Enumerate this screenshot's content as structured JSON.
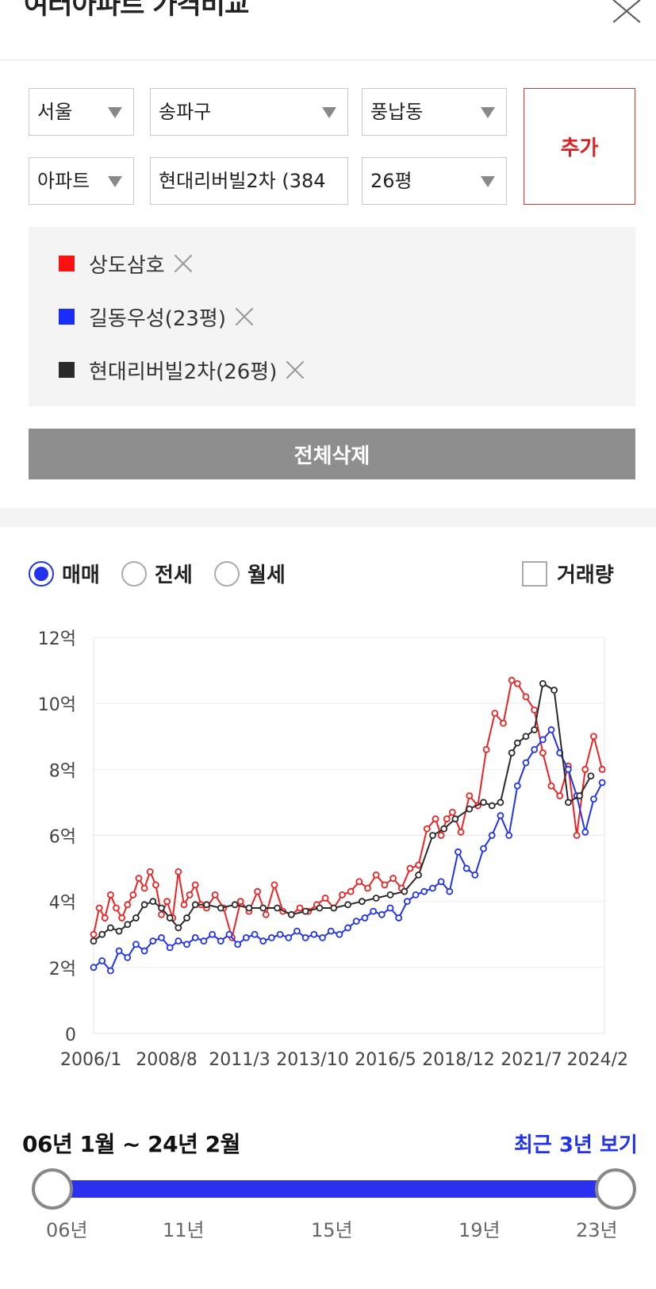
{
  "header": {
    "title": "여러아파트 가격비교"
  },
  "filters": {
    "city": "서울",
    "district": "송파구",
    "dong": "풍납동",
    "type": "아파트",
    "apartment": "현대리버빌2차 (384",
    "size": "26평",
    "add_label": "추가"
  },
  "compare_list": [
    {
      "name": "상도삼호",
      "color": "#ff1010"
    },
    {
      "name": "길동우성(23평)",
      "color": "#1a2cff"
    },
    {
      "name": "현대리버빌2차(26평)",
      "color": "#2a2a2a"
    }
  ],
  "clear_all_label": "전체삭제",
  "tabs": {
    "sale": "매매",
    "jeonse": "전세",
    "monthly": "월세",
    "selected": "sale"
  },
  "volume_label": "거래량",
  "chart_data": {
    "type": "line",
    "y_ticks": [
      "0",
      "2억",
      "4억",
      "6억",
      "8억",
      "10억",
      "12억"
    ],
    "ylim": [
      0,
      12
    ],
    "x_ticks": [
      "2006/1",
      "2008/8",
      "2011/3",
      "2013/10",
      "2016/5",
      "2018/12",
      "2021/7",
      "2024/2"
    ],
    "xlim": [
      2006.0,
      2024.08
    ],
    "grid": true,
    "series": [
      {
        "name": "상도삼호",
        "color": "#ee2222",
        "x": [
          2006.0,
          2006.2,
          2006.4,
          2006.6,
          2006.8,
          2007.0,
          2007.2,
          2007.4,
          2007.6,
          2007.8,
          2008.0,
          2008.2,
          2008.4,
          2008.6,
          2008.8,
          2009.0,
          2009.2,
          2009.4,
          2009.6,
          2009.8,
          2010.0,
          2010.3,
          2010.6,
          2010.9,
          2011.2,
          2011.5,
          2011.8,
          2012.1,
          2012.4,
          2012.7,
          2013.0,
          2013.3,
          2013.6,
          2013.9,
          2014.2,
          2014.5,
          2014.8,
          2015.1,
          2015.4,
          2015.7,
          2016.0,
          2016.3,
          2016.6,
          2016.9,
          2017.2,
          2017.5,
          2017.8,
          2018.1,
          2018.3,
          2018.5,
          2018.7,
          2019.0,
          2019.3,
          2019.6,
          2019.9,
          2020.2,
          2020.5,
          2020.8,
          2021.0,
          2021.3,
          2021.6,
          2021.9,
          2022.2,
          2022.5,
          2022.8,
          2023.1,
          2023.4,
          2023.7,
          2024.0
        ],
        "y": [
          3.0,
          3.8,
          3.5,
          4.2,
          3.8,
          3.5,
          3.9,
          4.2,
          4.7,
          4.4,
          4.9,
          4.5,
          3.6,
          4.0,
          3.5,
          4.9,
          3.9,
          4.2,
          4.5,
          3.9,
          3.8,
          4.2,
          3.8,
          2.9,
          4.0,
          3.7,
          4.3,
          3.6,
          4.5,
          3.7,
          3.6,
          3.8,
          3.7,
          3.9,
          4.1,
          3.8,
          4.2,
          4.3,
          4.6,
          4.4,
          4.8,
          4.5,
          4.7,
          4.4,
          5.0,
          5.1,
          6.2,
          6.5,
          6.0,
          6.5,
          6.7,
          6.1,
          7.2,
          6.9,
          8.6,
          9.7,
          9.4,
          10.7,
          10.6,
          10.2,
          9.8,
          8.5,
          7.5,
          7.2,
          8.1,
          6.0,
          8.0,
          9.0,
          8.0
        ]
      },
      {
        "name": "길동우성(23평)",
        "color": "#2233ee",
        "x": [
          2006.0,
          2006.3,
          2006.6,
          2006.9,
          2007.2,
          2007.5,
          2007.8,
          2008.1,
          2008.4,
          2008.7,
          2009.0,
          2009.3,
          2009.6,
          2009.9,
          2010.2,
          2010.5,
          2010.8,
          2011.1,
          2011.4,
          2011.7,
          2012.0,
          2012.3,
          2012.6,
          2012.9,
          2013.2,
          2013.5,
          2013.8,
          2014.1,
          2014.4,
          2014.7,
          2015.0,
          2015.3,
          2015.6,
          2015.9,
          2016.2,
          2016.5,
          2016.8,
          2017.1,
          2017.4,
          2017.7,
          2018.0,
          2018.3,
          2018.6,
          2018.9,
          2019.2,
          2019.5,
          2019.8,
          2020.1,
          2020.4,
          2020.7,
          2021.0,
          2021.3,
          2021.6,
          2021.9,
          2022.2,
          2022.5,
          2022.8,
          2023.1,
          2023.4,
          2023.7,
          2024.0
        ],
        "y": [
          2.0,
          2.2,
          1.9,
          2.5,
          2.3,
          2.7,
          2.5,
          2.8,
          2.9,
          2.6,
          2.8,
          2.7,
          2.9,
          2.8,
          3.0,
          2.8,
          3.0,
          2.7,
          2.9,
          3.0,
          2.8,
          2.9,
          3.0,
          2.9,
          3.1,
          2.9,
          3.0,
          2.9,
          3.1,
          3.0,
          3.2,
          3.4,
          3.5,
          3.7,
          3.6,
          3.8,
          3.5,
          4.0,
          4.2,
          4.3,
          4.4,
          4.6,
          4.3,
          5.5,
          5.0,
          4.8,
          5.6,
          6.0,
          6.6,
          6.0,
          7.5,
          8.2,
          8.6,
          8.9,
          9.2,
          8.5,
          8.0,
          7.2,
          6.1,
          7.1,
          7.6
        ]
      },
      {
        "name": "현대리버빌2차(26평)",
        "color": "#2a2a2a",
        "x": [
          2006.0,
          2006.3,
          2006.6,
          2006.9,
          2007.2,
          2007.5,
          2007.8,
          2008.1,
          2008.4,
          2008.7,
          2009.0,
          2009.3,
          2009.6,
          2010.0,
          2010.5,
          2011.0,
          2011.5,
          2012.0,
          2012.5,
          2013.0,
          2013.5,
          2014.0,
          2014.5,
          2015.0,
          2015.5,
          2016.0,
          2016.5,
          2017.0,
          2017.5,
          2018.0,
          2018.4,
          2018.8,
          2019.3,
          2019.8,
          2020.1,
          2020.4,
          2020.8,
          2021.0,
          2021.3,
          2021.6,
          2021.9,
          2022.3,
          2022.8,
          2023.2,
          2023.6
        ],
        "y": [
          2.8,
          3.0,
          3.2,
          3.1,
          3.3,
          3.5,
          3.9,
          4.0,
          3.8,
          3.5,
          3.2,
          3.5,
          3.9,
          3.9,
          3.8,
          3.9,
          3.8,
          3.8,
          3.8,
          3.6,
          3.7,
          3.8,
          3.8,
          3.9,
          4.0,
          4.1,
          4.2,
          4.3,
          4.8,
          6.0,
          6.2,
          6.5,
          6.8,
          7.0,
          6.9,
          7.0,
          8.5,
          8.8,
          9.0,
          9.2,
          10.6,
          10.4,
          7.0,
          7.2,
          7.8
        ]
      }
    ]
  },
  "range": {
    "label": "06년 1월 ~ 24년 2월",
    "recent_link": "최근 3년 보기",
    "ticks": [
      "06년",
      "11년",
      "15년",
      "19년",
      "23년"
    ]
  }
}
